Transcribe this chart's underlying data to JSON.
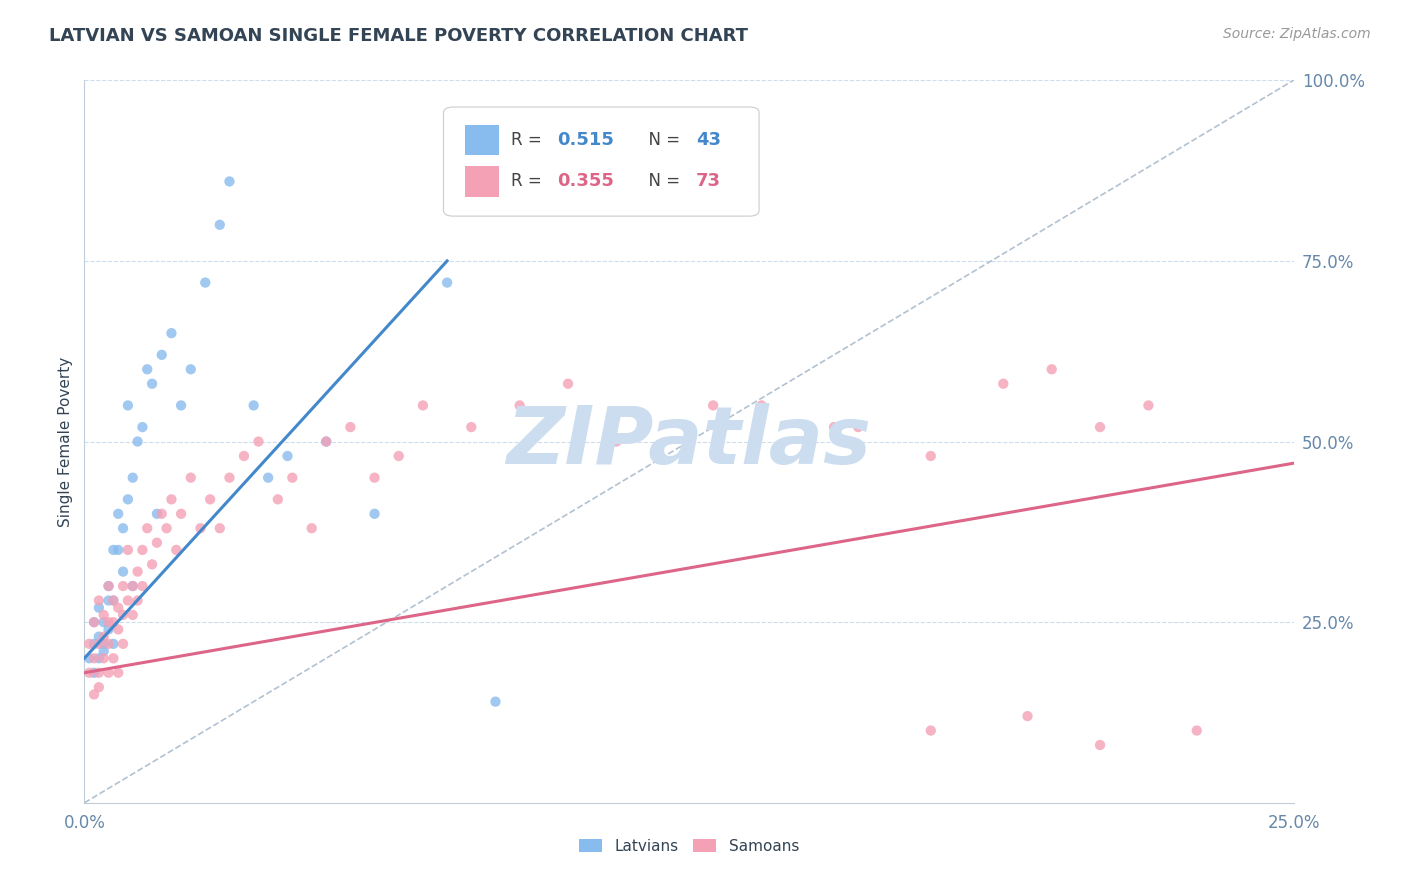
{
  "title": "LATVIAN VS SAMOAN SINGLE FEMALE POVERTY CORRELATION CHART",
  "source": "Source: ZipAtlas.com",
  "ylabel": "Single Female Poverty",
  "xlim": [
    0.0,
    0.25
  ],
  "ylim": [
    0.0,
    1.0
  ],
  "x_tick_labels": [
    "0.0%",
    "25.0%"
  ],
  "y_ticks_right": [
    0.25,
    0.5,
    0.75,
    1.0
  ],
  "y_tick_labels_right": [
    "25.0%",
    "50.0%",
    "75.0%",
    "100.0%"
  ],
  "latvian_color": "#88bbee",
  "samoan_color": "#f4a0b5",
  "latvian_R": 0.515,
  "latvian_N": 43,
  "samoan_R": 0.355,
  "samoan_N": 73,
  "latvian_line_color": "#4488cc",
  "samoan_line_color": "#dd6688",
  "reference_line_color": "#aabbcc",
  "background_color": "#ffffff",
  "watermark": "ZIPatlas",
  "watermark_color": "#ccddef",
  "grid_color": "#ccddee",
  "title_color": "#334455",
  "axis_label_color": "#6688aa",
  "legend_r_color": "#4488cc",
  "legend_r2_color": "#dd6688",
  "latvian_x": [
    0.001,
    0.002,
    0.002,
    0.002,
    0.003,
    0.003,
    0.003,
    0.004,
    0.004,
    0.004,
    0.005,
    0.005,
    0.005,
    0.006,
    0.006,
    0.006,
    0.007,
    0.007,
    0.008,
    0.008,
    0.009,
    0.009,
    0.01,
    0.01,
    0.011,
    0.012,
    0.013,
    0.014,
    0.015,
    0.016,
    0.018,
    0.02,
    0.022,
    0.025,
    0.028,
    0.03,
    0.035,
    0.038,
    0.042,
    0.05,
    0.06,
    0.075,
    0.085
  ],
  "latvian_y": [
    0.2,
    0.22,
    0.18,
    0.25,
    0.23,
    0.2,
    0.27,
    0.22,
    0.25,
    0.21,
    0.3,
    0.24,
    0.28,
    0.28,
    0.35,
    0.22,
    0.35,
    0.4,
    0.38,
    0.32,
    0.42,
    0.55,
    0.45,
    0.3,
    0.5,
    0.52,
    0.6,
    0.58,
    0.4,
    0.62,
    0.65,
    0.55,
    0.6,
    0.72,
    0.8,
    0.86,
    0.55,
    0.45,
    0.48,
    0.5,
    0.4,
    0.72,
    0.14
  ],
  "samoan_x": [
    0.001,
    0.001,
    0.002,
    0.002,
    0.002,
    0.003,
    0.003,
    0.003,
    0.003,
    0.004,
    0.004,
    0.004,
    0.005,
    0.005,
    0.005,
    0.005,
    0.006,
    0.006,
    0.006,
    0.007,
    0.007,
    0.007,
    0.008,
    0.008,
    0.008,
    0.009,
    0.009,
    0.01,
    0.01,
    0.011,
    0.011,
    0.012,
    0.012,
    0.013,
    0.014,
    0.015,
    0.016,
    0.017,
    0.018,
    0.019,
    0.02,
    0.022,
    0.024,
    0.026,
    0.028,
    0.03,
    0.033,
    0.036,
    0.04,
    0.043,
    0.047,
    0.05,
    0.055,
    0.06,
    0.065,
    0.07,
    0.08,
    0.09,
    0.1,
    0.11,
    0.13,
    0.155,
    0.175,
    0.19,
    0.2,
    0.21,
    0.22,
    0.23,
    0.21,
    0.195,
    0.175,
    0.16,
    0.14
  ],
  "samoan_y": [
    0.18,
    0.22,
    0.2,
    0.15,
    0.25,
    0.22,
    0.18,
    0.28,
    0.16,
    0.23,
    0.26,
    0.2,
    0.25,
    0.18,
    0.3,
    0.22,
    0.25,
    0.28,
    0.2,
    0.27,
    0.24,
    0.18,
    0.3,
    0.26,
    0.22,
    0.28,
    0.35,
    0.3,
    0.26,
    0.32,
    0.28,
    0.35,
    0.3,
    0.38,
    0.33,
    0.36,
    0.4,
    0.38,
    0.42,
    0.35,
    0.4,
    0.45,
    0.38,
    0.42,
    0.38,
    0.45,
    0.48,
    0.5,
    0.42,
    0.45,
    0.38,
    0.5,
    0.52,
    0.45,
    0.48,
    0.55,
    0.52,
    0.55,
    0.58,
    0.5,
    0.55,
    0.52,
    0.48,
    0.58,
    0.6,
    0.52,
    0.55,
    0.1,
    0.08,
    0.12,
    0.1,
    0.52,
    0.55
  ]
}
